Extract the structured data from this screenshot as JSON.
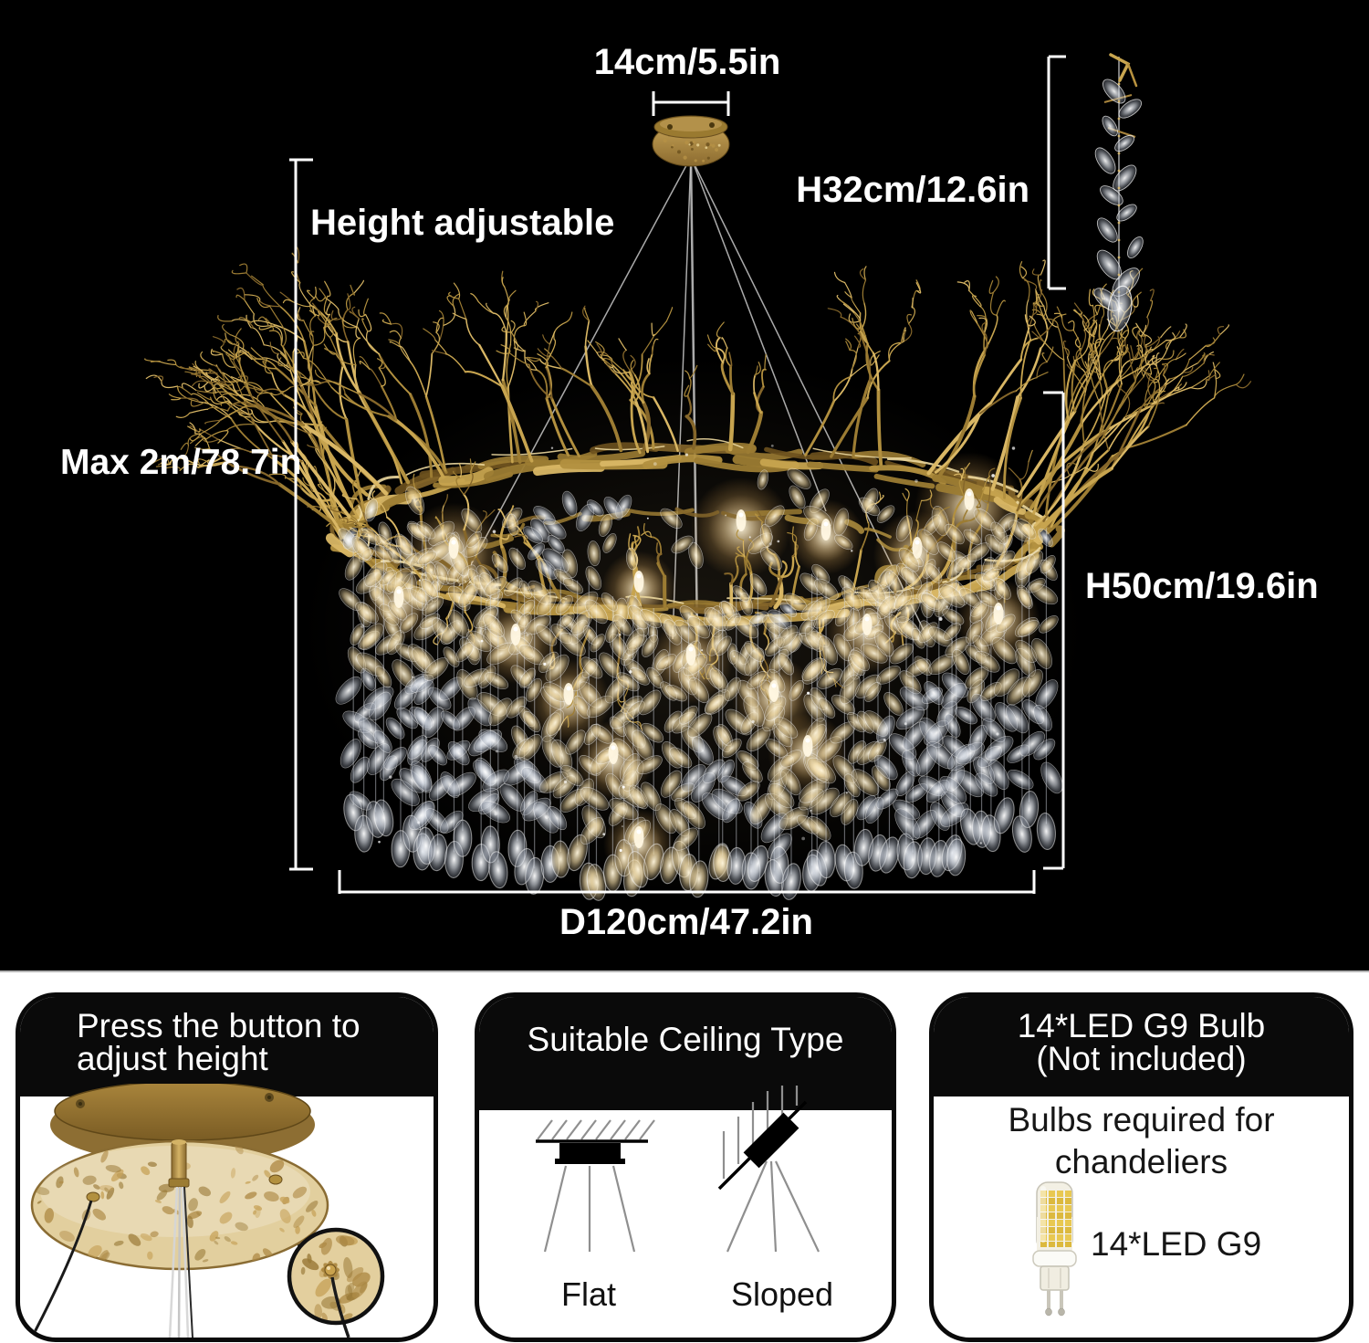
{
  "hero": {
    "canopy_width": "14cm/5.5in",
    "strand_height": "H32cm/12.6in",
    "height_adjustable": "Height adjustable",
    "max_drop": "Max 2m/78.7in",
    "fixture_height": "H50cm/19.6in",
    "diameter": "D120cm/47.2in"
  },
  "cards": {
    "adjust": {
      "title_line1": "Press the button to",
      "title_line2": "adjust height"
    },
    "ceiling": {
      "title": "Suitable Ceiling Type",
      "flat_label": "Flat",
      "sloped_label": "Sloped"
    },
    "bulb": {
      "title_line1": "14*LED G9 Bulb",
      "title_line2": "(Not included)",
      "body_line1": "Bulbs required for",
      "body_line2": "chandeliers",
      "bulb_label": "14*LED G9"
    }
  },
  "icons": {
    "flat_ceiling": "flat-ceiling-diagram",
    "sloped_ceiling": "sloped-ceiling-diagram",
    "g9_bulb": "g9-bulb-illustration",
    "detail_magnifier": "magnifier-detail-circle"
  },
  "colors": {
    "background": "#000000",
    "gold": "#c9a24d",
    "glow": "#ffd98a",
    "card_border": "#0a0a0a",
    "text_light": "#ffffff",
    "text_dark": "#1a1a1a"
  }
}
